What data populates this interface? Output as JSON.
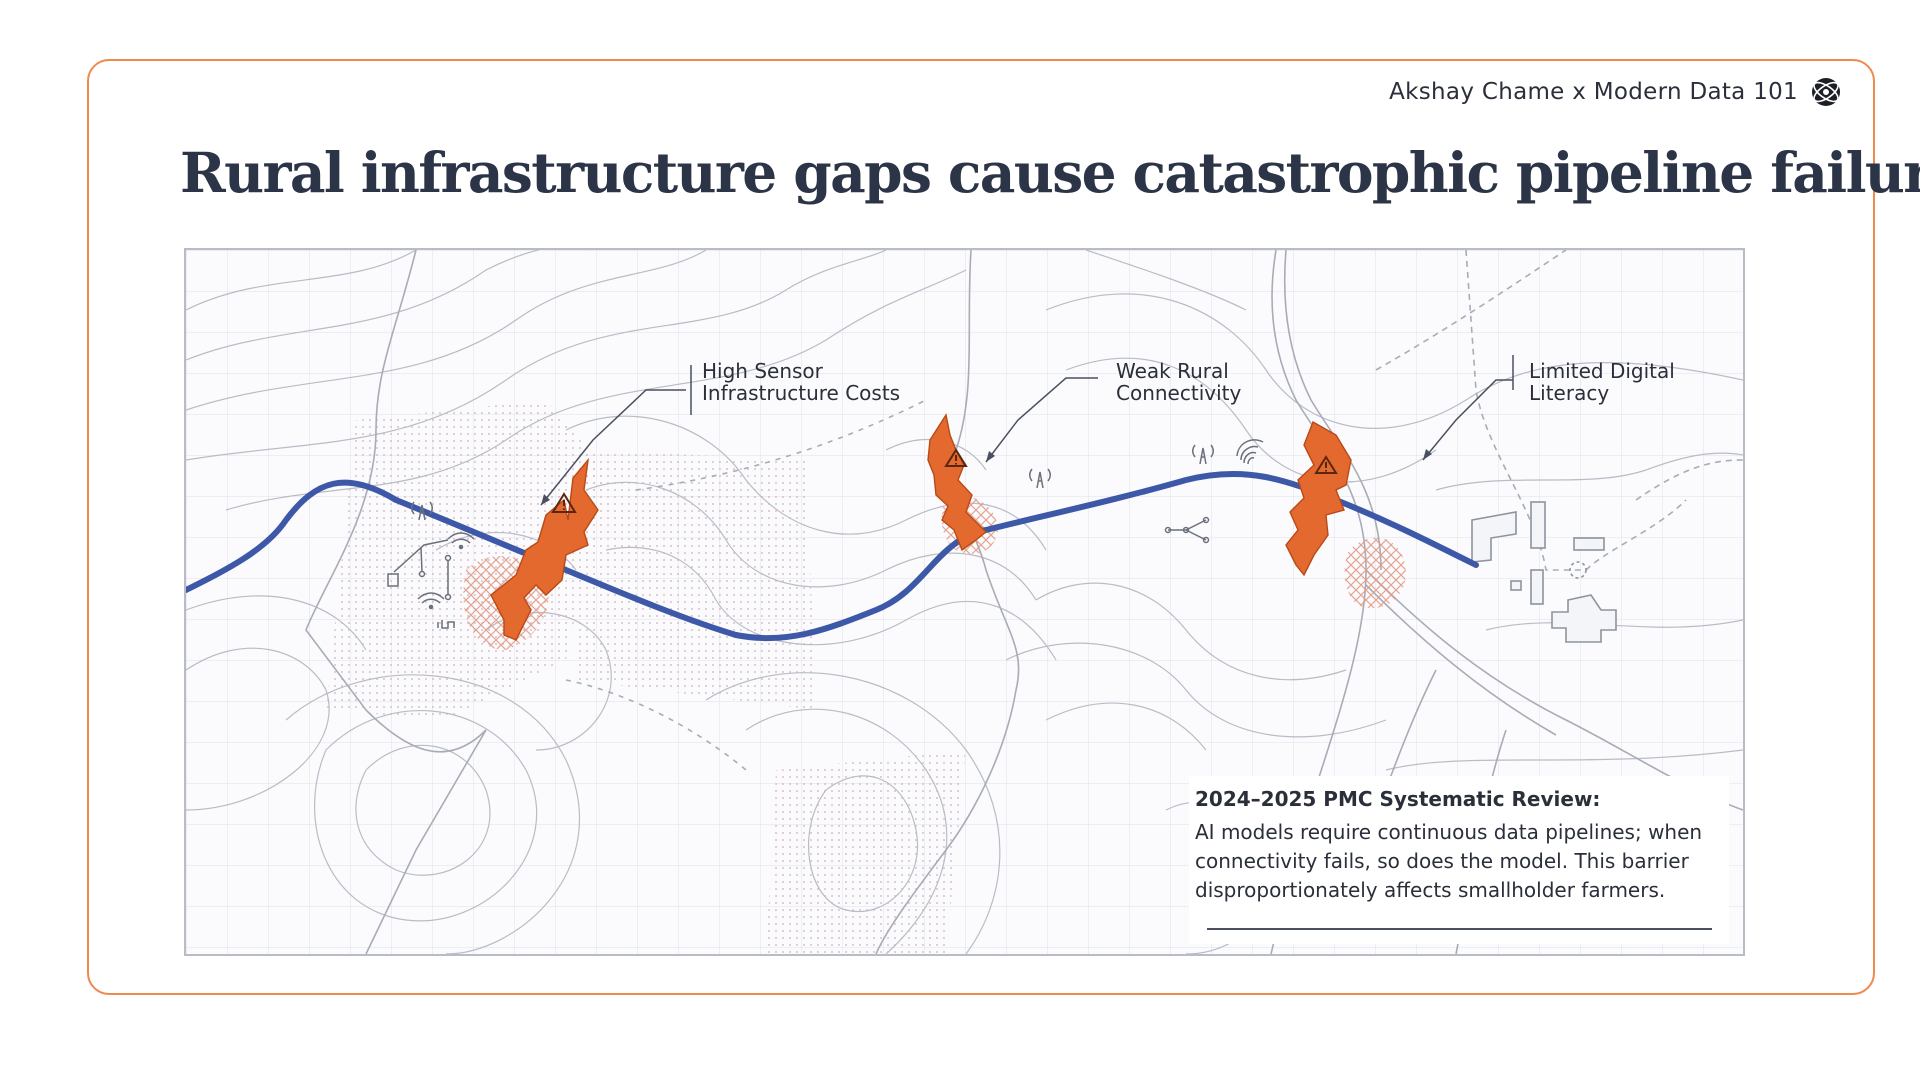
{
  "brand": {
    "text": "Akshay Chame x Modern Data 101",
    "logo_icon": "globe-logo-icon"
  },
  "title": "Rural infrastructure gaps cause catastrophic pipeline failures",
  "labels": {
    "sensor": [
      "High Sensor",
      "Infrastructure Costs"
    ],
    "connectivity": [
      "Weak Rural",
      "Connectivity"
    ],
    "literacy": [
      "Limited Digital",
      "Literacy"
    ]
  },
  "note": {
    "title": "2024–2025 PMC Systematic Review:",
    "body": "AI models require continuous data pipelines; when connectivity fails, so does the model. This barrier disproportionately affects smallholder farmers."
  },
  "colors": {
    "accent": "#ee8a4e",
    "pipeline": "#3e58a8",
    "break": "#e3692e",
    "title": "#2c3447"
  },
  "icons": [
    "warning-icon",
    "cell-tower-icon",
    "wifi-icon",
    "network-node-icon",
    "building-icon"
  ]
}
